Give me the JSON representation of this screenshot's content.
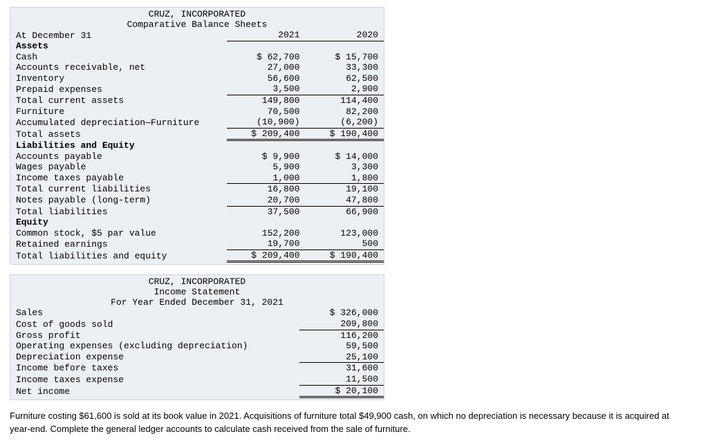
{
  "balanceSheet": {
    "company": "CRUZ, INCORPORATED",
    "title": "Comparative Balance Sheets",
    "dateRow": "At December 31",
    "col1": "2021",
    "col2": "2020",
    "assetsHeader": "Assets",
    "rows": {
      "cash": {
        "l": "Cash",
        "a": "$ 62,700",
        "b": "$ 15,700"
      },
      "ar": {
        "l": "Accounts receivable, net",
        "a": "27,000",
        "b": "33,300"
      },
      "inv": {
        "l": "Inventory",
        "a": "56,600",
        "b": "62,500"
      },
      "prepaid": {
        "l": "Prepaid expenses",
        "a": "3,500",
        "b": "2,900"
      },
      "tca": {
        "l": "Total current assets",
        "a": "149,800",
        "b": "114,400"
      },
      "furn": {
        "l": "Furniture",
        "a": "70,500",
        "b": "82,200"
      },
      "accdep": {
        "l": "Accumulated depreciation—Furniture",
        "a": "(10,900)",
        "b": "(6,200)"
      },
      "ta": {
        "l": "Total assets",
        "a": "$ 209,400",
        "b": "$ 190,400"
      }
    },
    "liabHeader": "Liabilities and Equity",
    "lrows": {
      "ap": {
        "l": "Accounts payable",
        "a": "$ 9,900",
        "b": "$ 14,000"
      },
      "wp": {
        "l": "Wages payable",
        "a": "5,900",
        "b": "3,300"
      },
      "itp": {
        "l": "Income taxes payable",
        "a": "1,000",
        "b": "1,800"
      },
      "tcl": {
        "l": "Total current liabilities",
        "a": "16,800",
        "b": "19,100"
      },
      "np": {
        "l": "Notes payable (long-term)",
        "a": "20,700",
        "b": "47,800"
      },
      "tl": {
        "l": "Total liabilities",
        "a": "37,500",
        "b": "66,900"
      }
    },
    "eqHeader": "Equity",
    "erows": {
      "cs": {
        "l": "Common stock, $5 par value",
        "a": "152,200",
        "b": "123,000"
      },
      "re": {
        "l": "Retained earnings",
        "a": "19,700",
        "b": "500"
      },
      "tle": {
        "l": "Total liabilities and equity",
        "a": "$ 209,400",
        "b": "$ 190,400"
      }
    }
  },
  "incomeStatement": {
    "company": "CRUZ, INCORPORATED",
    "title": "Income Statement",
    "period": "For Year Ended December 31, 2021",
    "rows": {
      "sales": {
        "l": "Sales",
        "v": "$ 326,000"
      },
      "cogs": {
        "l": "Cost of goods sold",
        "v": "209,800"
      },
      "gp": {
        "l": "Gross profit",
        "v": "116,200"
      },
      "opex": {
        "l": "Operating expenses (excluding depreciation)",
        "v": "59,500"
      },
      "dep": {
        "l": "Depreciation expense",
        "v": "25,100"
      },
      "ibt": {
        "l": "Income before taxes",
        "v": "31,600"
      },
      "ite": {
        "l": "Income taxes expense",
        "v": "11,500"
      },
      "ni": {
        "l": "Net income",
        "v": "$ 20,100"
      }
    }
  },
  "note": "Furniture costing $61,600 is sold at its book value in 2021. Acquisitions of furniture total $49,900 cash, on which no depreciation is necessary because it is acquired at year-end. Complete the general ledger accounts to calculate cash received from the sale of furniture."
}
